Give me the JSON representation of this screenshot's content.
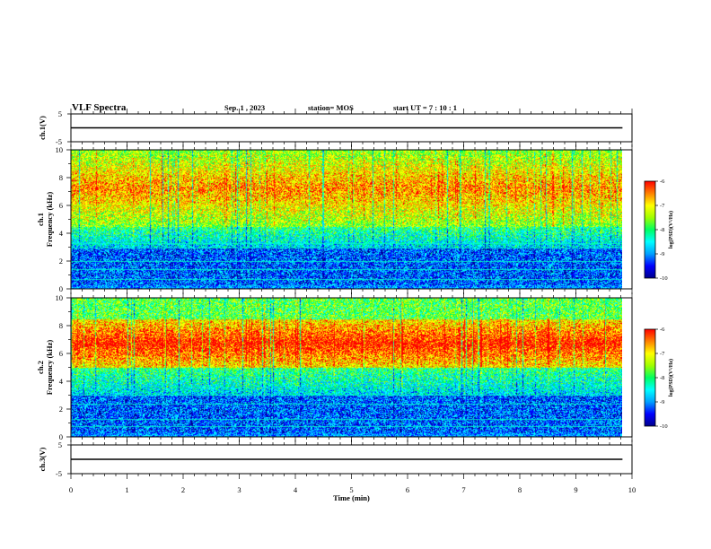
{
  "header": {
    "title": "VLF Spectra",
    "date": "Sep. 1 , 2023",
    "station": "station= MOS",
    "start": "start  UT  =   7 : 10 : 1"
  },
  "chart_data": [
    {
      "type": "line",
      "panel": "ch1-voltage",
      "ylabel": "ch.1(V)",
      "ylim": [
        -5,
        5
      ],
      "yticks": [
        "5",
        "-5"
      ],
      "series": [
        {
          "x": [
            0,
            9.83
          ],
          "y": [
            0,
            0
          ]
        }
      ]
    },
    {
      "type": "heatmap",
      "panel": "ch1-spectrogram",
      "ylabel": "ch.1\nFrequency (kHz)",
      "ylabel_lines": [
        "ch.1",
        "Frequency (kHz)"
      ],
      "ylim": [
        0,
        10
      ],
      "yticks": [
        "0",
        "2",
        "4",
        "6",
        "8",
        "10"
      ],
      "xlim": [
        0,
        10
      ],
      "data_end_min": 9.83,
      "colorbar": {
        "label": "log(PSD)(V²/Hz)",
        "range": [
          -10,
          -6
        ],
        "ticks": [
          "-6",
          "-7",
          "-8",
          "-9",
          "-10"
        ]
      },
      "bands": {
        "intense_khz": [
          4.5,
          10
        ],
        "moderate_khz": [
          3,
          4.5
        ],
        "weak_khz": [
          0,
          3
        ]
      }
    },
    {
      "type": "heatmap",
      "panel": "ch2-spectrogram",
      "ylabel": "ch.2\nFrequency (kHz)",
      "ylabel_lines": [
        "ch.2",
        "Frequency (kHz)"
      ],
      "ylim": [
        0,
        10
      ],
      "yticks": [
        "0",
        "2",
        "4",
        "6",
        "8",
        "10"
      ],
      "xlim": [
        0,
        10
      ],
      "data_end_min": 9.83,
      "colorbar": {
        "label": "log(PSD)(V²/Hz)",
        "range": [
          -10,
          -6
        ],
        "ticks": [
          "-6",
          "-7",
          "-8",
          "-9",
          "-10"
        ]
      },
      "bands": {
        "intense_khz": [
          5,
          8.5
        ],
        "moderate_khz": [
          3,
          5
        ],
        "weak_khz": [
          0,
          3
        ]
      }
    },
    {
      "type": "line",
      "panel": "ch3-voltage",
      "ylabel": "ch.3(V)",
      "ylim": [
        -5,
        5
      ],
      "yticks": [
        "5",
        "-5"
      ],
      "series": [
        {
          "x": [
            0,
            9.83
          ],
          "y": [
            0,
            0
          ]
        }
      ]
    }
  ],
  "xaxis": {
    "label": "Time (min)",
    "xlim": [
      0,
      10
    ],
    "ticks": [
      "0",
      "1",
      "2",
      "3",
      "4",
      "5",
      "6",
      "7",
      "8",
      "9",
      "10"
    ]
  },
  "colors": {
    "palette": [
      "#00008c",
      "#0000ff",
      "#00a0ff",
      "#00ffff",
      "#00ff60",
      "#a0ff00",
      "#ffff00",
      "#ff8000",
      "#ff0000",
      "#ffffff"
    ]
  }
}
